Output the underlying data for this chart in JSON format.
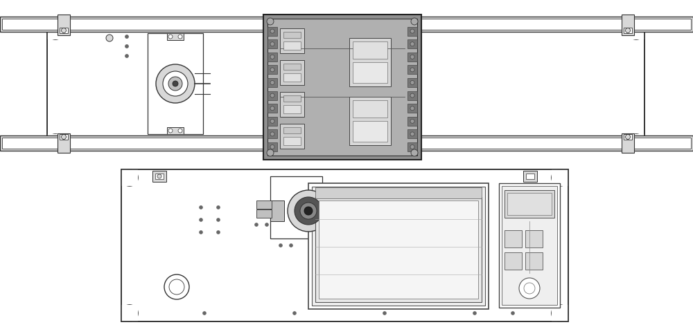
{
  "background_color": "#ffffff",
  "line_color": "#555555",
  "dark_color": "#333333",
  "light_fill": "#efefef",
  "white_fill": "#ffffff",
  "gray_fill": "#d8d8d8",
  "dark_fill": "#888888",
  "rail_fill": "#e0e0e0",
  "component_gray": "#c0c0c0",
  "figsize": [
    10.0,
    4.73
  ],
  "dpi": 100
}
